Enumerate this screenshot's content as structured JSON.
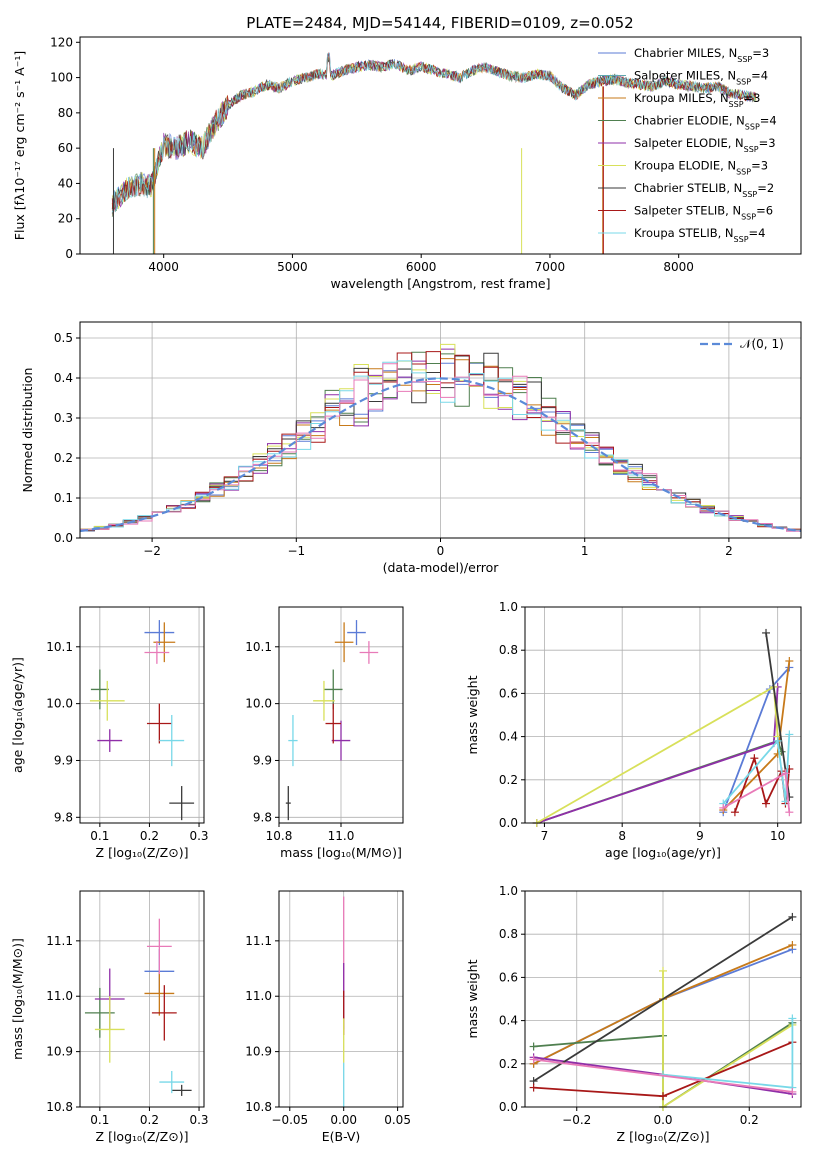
{
  "figure_title": "PLATE=2484, MJD=54144, FIBERID=0109, z=0.052",
  "colors": {
    "chabrier_miles": "#5b7bd6",
    "salpeter_miles": "#5fa8b0",
    "kroupa_miles": "#c77a1a",
    "chabrier_elodie": "#4f7f4f",
    "salpeter_elodie": "#8f2fa8",
    "kroupa_elodie": "#d8e05a",
    "chabrier_stelib": "#3a3a3a",
    "salpeter_stelib": "#a81818",
    "kroupa_stelib": "#78d8e8",
    "normal_curve": "#5b8ad8"
  },
  "chart_data": [
    {
      "id": "spectrum",
      "type": "line",
      "xlabel": "wavelength [Angstrom, rest frame]",
      "ylabel": "Flux [fλ10⁻¹⁷ erg cm⁻² s⁻¹ A⁻¹]",
      "xlim": [
        3350,
        8950
      ],
      "ylim": [
        0,
        123
      ],
      "x_ticks": [
        4000,
        5000,
        6000,
        7000,
        8000
      ],
      "y_ticks": [
        0,
        20,
        40,
        60,
        80,
        100,
        120
      ],
      "legend_position": "top-right",
      "legend": [
        {
          "label": "Chabrier MILES, N",
          "sub": "SSP",
          "count": "=3",
          "color": "#5b7bd6"
        },
        {
          "label": "Salpeter MILES, N",
          "sub": "SSP",
          "count": "=4",
          "color": "#5fa8b0"
        },
        {
          "label": "Kroupa MILES, N",
          "sub": "SSP",
          "count": "=3",
          "color": "#c77a1a"
        },
        {
          "label": "Chabrier ELODIE, N",
          "sub": "SSP",
          "count": "=4",
          "color": "#4f7f4f"
        },
        {
          "label": "Salpeter ELODIE, N",
          "sub": "SSP",
          "count": "=3",
          "color": "#8f2fa8"
        },
        {
          "label": "Kroupa ELODIE, N",
          "sub": "SSP",
          "count": "=3",
          "color": "#d8e05a"
        },
        {
          "label": "Chabrier STELIB, N",
          "sub": "SSP",
          "count": "=2",
          "color": "#3a3a3a"
        },
        {
          "label": "Salpeter STELIB, N",
          "sub": "SSP",
          "count": "=6",
          "color": "#a81818"
        },
        {
          "label": "Kroupa STELIB, N",
          "sub": "SSP",
          "count": "=4",
          "color": "#78d8e8"
        }
      ],
      "x": [
        3600,
        3700,
        3800,
        3900,
        4000,
        4100,
        4200,
        4300,
        4400,
        4500,
        4600,
        4700,
        4800,
        4900,
        5000,
        5100,
        5200,
        5300,
        5400,
        5500,
        5600,
        5700,
        5800,
        5900,
        6000,
        6100,
        6200,
        6300,
        6400,
        6500,
        6600,
        6700,
        6800,
        6900,
        7000,
        7100,
        7200,
        7300,
        7400,
        7500,
        7600,
        7700,
        7800,
        7900,
        8000,
        8100,
        8200,
        8300,
        8400,
        8500,
        8600
      ],
      "y": [
        28,
        36,
        40,
        38,
        62,
        60,
        64,
        60,
        74,
        84,
        90,
        92,
        96,
        94,
        98,
        100,
        102,
        101,
        104,
        106,
        107,
        106,
        108,
        104,
        106,
        104,
        102,
        100,
        104,
        106,
        103,
        101,
        100,
        102,
        101,
        94,
        90,
        96,
        98,
        99,
        97,
        96,
        95,
        98,
        96,
        95,
        94,
        95,
        91,
        90,
        89
      ]
    },
    {
      "id": "residuals",
      "type": "histogram",
      "xlabel": "(data-model)/error",
      "ylabel": "Normed distribution",
      "xlim": [
        -2.5,
        2.5
      ],
      "ylim": [
        0,
        0.54
      ],
      "x_ticks": [
        -2,
        -1,
        0,
        1,
        2
      ],
      "x_tick_labels": [
        "−2",
        "−1",
        "0",
        "1",
        "2"
      ],
      "y_ticks": [
        0.0,
        0.1,
        0.2,
        0.3,
        0.4,
        0.5
      ],
      "legend_position": "top-right",
      "legend_label": "𝒩(0, 1)",
      "bin_width": 0.1,
      "grid": true
    },
    {
      "id": "age_vs_Z",
      "type": "scatter",
      "xlabel": "Z [log₁₀(Z/Z⊙)]",
      "ylabel": "age  [log₁₀(age/yr)]",
      "xlim": [
        0.06,
        0.31
      ],
      "ylim": [
        9.79,
        10.17
      ],
      "x_ticks": [
        0.1,
        0.2,
        0.3
      ],
      "y_ticks": [
        9.8,
        9.9,
        10.0,
        10.1
      ],
      "points": [
        {
          "model": "chabrier_miles",
          "x": 0.22,
          "y": 10.125,
          "xerr": 0.03,
          "yerr": 0.022
        },
        {
          "model": "kroupa_miles",
          "x": 0.23,
          "y": 10.108,
          "xerr": 0.022,
          "yerr": 0.035
        },
        {
          "model": "chabrier_elodie",
          "x": 0.1,
          "y": 10.025,
          "xerr": 0.018,
          "yerr": 0.035
        },
        {
          "model": "salpeter_elodie",
          "x": 0.12,
          "y": 9.935,
          "xerr": 0.025,
          "yerr": 0.02
        },
        {
          "model": "kroupa_elodie",
          "x": 0.115,
          "y": 10.005,
          "xerr": 0.035,
          "yerr": 0.035
        },
        {
          "model": "chabrier_stelib",
          "x": 0.265,
          "y": 9.825,
          "xerr": 0.025,
          "yerr": 0.03
        },
        {
          "model": "salpeter_stelib",
          "x": 0.22,
          "y": 9.965,
          "xerr": 0.025,
          "yerr": 0.035
        },
        {
          "model": "kroupa_stelib",
          "x": 0.245,
          "y": 9.935,
          "xerr": 0.025,
          "yerr": 0.045
        },
        {
          "model": "pink",
          "x": 0.215,
          "y": 10.09,
          "xerr": 0.025,
          "yerr": 0.02
        }
      ]
    },
    {
      "id": "age_vs_mass",
      "type": "scatter",
      "xlabel": "mass [log₁₀(M/M⊙)]",
      "ylabel": "",
      "xlim": [
        10.8,
        11.2
      ],
      "ylim": [
        9.79,
        10.17
      ],
      "x_ticks": [
        10.8,
        11.0
      ],
      "x_tick_labels": [
        "10.8",
        "11.0"
      ],
      "y_ticks": [
        9.8,
        9.9,
        10.0,
        10.1
      ],
      "points": [
        {
          "model": "chabrier_miles",
          "x": 11.05,
          "y": 10.125,
          "xerr": 0.03,
          "yerr": 0.022
        },
        {
          "model": "kroupa_miles",
          "x": 11.01,
          "y": 10.108,
          "xerr": 0.03,
          "yerr": 0.035
        },
        {
          "model": "chabrier_elodie",
          "x": 10.975,
          "y": 10.025,
          "xerr": 0.03,
          "yerr": 0.035
        },
        {
          "model": "salpeter_elodie",
          "x": 11.0,
          "y": 9.935,
          "xerr": 0.03,
          "yerr": 0.035
        },
        {
          "model": "kroupa_elodie",
          "x": 10.945,
          "y": 10.005,
          "xerr": 0.035,
          "yerr": 0.035
        },
        {
          "model": "chabrier_stelib",
          "x": 10.83,
          "y": 9.825,
          "xerr": 0.008,
          "yerr": 0.03
        },
        {
          "model": "salpeter_stelib",
          "x": 10.975,
          "y": 9.965,
          "xerr": 0.025,
          "yerr": 0.035
        },
        {
          "model": "kroupa_stelib",
          "x": 10.845,
          "y": 9.935,
          "xerr": 0.015,
          "yerr": 0.045
        },
        {
          "model": "pink",
          "x": 11.09,
          "y": 10.09,
          "xerr": 0.03,
          "yerr": 0.02
        }
      ]
    },
    {
      "id": "weight_vs_age",
      "type": "line",
      "xlabel": "age  [log₁₀(age/yr)]",
      "ylabel": "mass weight",
      "xlim": [
        6.75,
        10.3
      ],
      "ylim": [
        0,
        1.0
      ],
      "x_ticks": [
        7,
        8,
        9,
        10
      ],
      "y_ticks": [
        0.0,
        0.2,
        0.4,
        0.6,
        0.8,
        1.0
      ],
      "series": [
        {
          "model": "chabrier_miles",
          "x": [
            9.3,
            9.9,
            10.15
          ],
          "y": [
            0.05,
            0.62,
            0.72
          ]
        },
        {
          "model": "kroupa_miles",
          "x": [
            9.3,
            10.0,
            10.15
          ],
          "y": [
            0.06,
            0.32,
            0.75
          ]
        },
        {
          "model": "chabrier_elodie",
          "x": [
            6.9,
            10.0,
            10.05
          ],
          "y": [
            0.0,
            0.38,
            0.33
          ]
        },
        {
          "model": "salpeter_elodie",
          "x": [
            6.9,
            9.95,
            10.0
          ],
          "y": [
            0.0,
            0.37,
            0.63
          ]
        },
        {
          "model": "kroupa_elodie",
          "x": [
            6.9,
            9.95,
            10.0
          ],
          "y": [
            0.0,
            0.63,
            0.4
          ]
        },
        {
          "model": "chabrier_stelib",
          "x": [
            9.85,
            10.15
          ],
          "y": [
            0.88,
            0.12
          ]
        },
        {
          "model": "salpeter_stelib",
          "x": [
            9.45,
            9.7,
            9.85,
            10.05,
            10.1,
            10.15
          ],
          "y": [
            0.05,
            0.3,
            0.09,
            0.24,
            0.09,
            0.25
          ]
        },
        {
          "model": "kroupa_stelib",
          "x": [
            9.3,
            10.0,
            10.1,
            10.15
          ],
          "y": [
            0.09,
            0.38,
            0.1,
            0.41
          ]
        },
        {
          "model": "pink",
          "x": [
            9.3,
            10.1,
            10.15
          ],
          "y": [
            0.07,
            0.23,
            0.05
          ]
        }
      ]
    },
    {
      "id": "mass_vs_Z",
      "type": "scatter",
      "xlabel": "Z [log₁₀(Z/Z⊙)]",
      "ylabel": "mass [log₁₀(M/M⊙)]",
      "xlim": [
        0.06,
        0.31
      ],
      "ylim": [
        10.8,
        11.19
      ],
      "x_ticks": [
        0.1,
        0.2,
        0.3
      ],
      "y_ticks": [
        10.8,
        10.9,
        11.0,
        11.1
      ],
      "points": [
        {
          "model": "chabrier_miles",
          "x": 0.22,
          "y": 11.045,
          "xerr": 0.03,
          "yerr": 0.04
        },
        {
          "model": "kroupa_miles",
          "x": 0.22,
          "y": 11.005,
          "xerr": 0.03,
          "yerr": 0.04
        },
        {
          "model": "chabrier_elodie",
          "x": 0.1,
          "y": 10.97,
          "xerr": 0.03,
          "yerr": 0.045
        },
        {
          "model": "salpeter_elodie",
          "x": 0.12,
          "y": 10.995,
          "xerr": 0.03,
          "yerr": 0.055
        },
        {
          "model": "kroupa_elodie",
          "x": 0.12,
          "y": 10.94,
          "xerr": 0.03,
          "yerr": 0.06
        },
        {
          "model": "chabrier_stelib",
          "x": 0.265,
          "y": 10.83,
          "xerr": 0.02,
          "yerr": 0.01
        },
        {
          "model": "salpeter_stelib",
          "x": 0.23,
          "y": 10.97,
          "xerr": 0.025,
          "yerr": 0.05
        },
        {
          "model": "kroupa_stelib",
          "x": 0.245,
          "y": 10.845,
          "xerr": 0.025,
          "yerr": 0.02
        },
        {
          "model": "pink",
          "x": 0.22,
          "y": 11.09,
          "xerr": 0.025,
          "yerr": 0.05
        }
      ]
    },
    {
      "id": "mass_vs_ebv",
      "type": "scatter",
      "xlabel": "E(B-V)",
      "ylabel": "",
      "xlim": [
        -0.06,
        0.055
      ],
      "ylim": [
        10.8,
        11.19
      ],
      "x_ticks": [
        -0.05,
        0.0,
        0.05
      ],
      "x_tick_labels": [
        "−0.05",
        "0.00",
        "0.05"
      ],
      "y_ticks": [
        10.8,
        10.9,
        11.0,
        11.1
      ],
      "points": [
        {
          "model": "pink",
          "x": 0.0,
          "y": 11.09,
          "xerr": 0.0,
          "yerr": 0.09
        },
        {
          "model": "salpeter_elodie",
          "x": 0.0,
          "y": 11.0,
          "xerr": 0.0,
          "yerr": 0.06
        },
        {
          "model": "salpeter_stelib",
          "x": 0.0,
          "y": 10.97,
          "xerr": 0.0,
          "yerr": 0.04
        },
        {
          "model": "kroupa_elodie",
          "x": 0.0,
          "y": 10.92,
          "xerr": 0.0,
          "yerr": 0.04
        },
        {
          "model": "kroupa_stelib",
          "x": 0.0,
          "y": 10.84,
          "xerr": 0.0,
          "yerr": 0.04
        }
      ]
    },
    {
      "id": "weight_vs_Z",
      "type": "line",
      "xlabel": "Z [log₁₀(Z/Z⊙)]",
      "ylabel": "mass weight",
      "xlim": [
        -0.32,
        0.32
      ],
      "ylim": [
        0,
        1.0
      ],
      "x_ticks": [
        -0.2,
        0.0,
        0.2
      ],
      "x_tick_labels": [
        "−0.2",
        "0.0",
        "0.2"
      ],
      "y_ticks": [
        0.0,
        0.2,
        0.4,
        0.6,
        0.8,
        1.0
      ],
      "series": [
        {
          "model": "chabrier_miles",
          "x": [
            -0.3,
            0.0,
            0.3
          ],
          "y": [
            0.2,
            0.5,
            0.73
          ]
        },
        {
          "model": "kroupa_miles",
          "x": [
            -0.3,
            0.0,
            0.3
          ],
          "y": [
            0.2,
            0.5,
            0.75
          ]
        },
        {
          "model": "chabrier_elodie",
          "x": [
            -0.3,
            0.0,
            0.0,
            0.3
          ],
          "y": [
            0.28,
            0.33,
            0.0,
            0.39
          ]
        },
        {
          "model": "salpeter_elodie",
          "x": [
            -0.3,
            0.0,
            0.3
          ],
          "y": [
            0.23,
            0.15,
            0.06
          ]
        },
        {
          "model": "kroupa_elodie",
          "x": [
            0.0,
            0.0,
            0.3
          ],
          "y": [
            0.63,
            0.0,
            0.38
          ]
        },
        {
          "model": "chabrier_stelib",
          "x": [
            -0.3,
            0.3
          ],
          "y": [
            0.12,
            0.88
          ]
        },
        {
          "model": "salpeter_stelib",
          "x": [
            -0.3,
            0.0,
            0.3
          ],
          "y": [
            0.09,
            0.05,
            0.3
          ]
        },
        {
          "model": "kroupa_stelib",
          "x": [
            0.0,
            0.3,
            0.3
          ],
          "y": [
            0.15,
            0.09,
            0.41
          ]
        },
        {
          "model": "pink",
          "x": [
            -0.3,
            0.3
          ],
          "y": [
            0.22,
            0.07
          ]
        }
      ]
    }
  ]
}
